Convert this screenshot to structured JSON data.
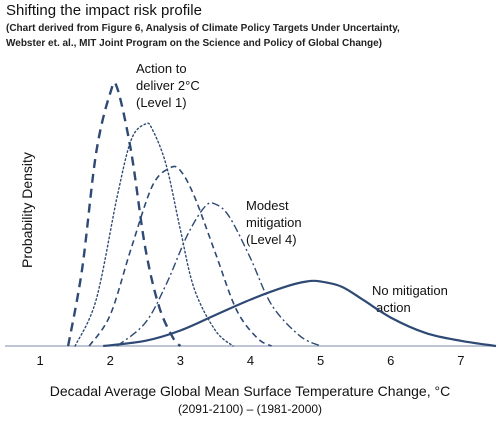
{
  "chart_data": {
    "type": "line",
    "title": "Shifting the impact risk profile",
    "subtitle_lines": [
      "(Chart derived from Figure 6, Analysis of Climate Policy Targets Under Uncertainty,",
      "Webster et. al., MIT Joint Program on the Science and Policy of Global Change)"
    ],
    "xlabel": "Decadal Average Global Mean Surface Temperature Change, °C",
    "xlabel_sub": "(2091-2100) – (1981-2000)",
    "ylabel": "Probability Density",
    "xlim": [
      0.5,
      7.5
    ],
    "ylim": [
      0,
      1
    ],
    "x_ticks": [
      1,
      2,
      3,
      4,
      5,
      6,
      7
    ],
    "grid": false,
    "legend": "none",
    "annotations": [
      {
        "lines": [
          "Action to",
          "deliver 2°C",
          "(Level 1)"
        ]
      },
      {
        "lines": [
          "Modest",
          "mitigation",
          "(Level 4)"
        ]
      },
      {
        "lines": [
          "No mitigation",
          "action"
        ]
      }
    ],
    "series": [
      {
        "style": "dashed-thick",
        "color": "#2e4a74",
        "x": [
          1.4,
          1.6,
          1.8,
          2.0,
          2.1,
          2.3,
          2.5,
          2.7,
          2.9,
          3.0
        ],
        "y": [
          0.0,
          0.3,
          0.75,
          0.98,
          1.0,
          0.75,
          0.38,
          0.15,
          0.03,
          0.0
        ]
      },
      {
        "style": "dotted",
        "color": "#2e4a74",
        "x": [
          1.5,
          1.8,
          2.1,
          2.3,
          2.5,
          2.6,
          2.8,
          3.0,
          3.2,
          3.5,
          3.75
        ],
        "y": [
          0.0,
          0.18,
          0.58,
          0.8,
          0.86,
          0.84,
          0.7,
          0.45,
          0.22,
          0.06,
          0.0
        ]
      },
      {
        "style": "dashed",
        "color": "#2e4a74",
        "x": [
          1.7,
          2.0,
          2.3,
          2.6,
          2.85,
          3.0,
          3.2,
          3.5,
          3.8,
          4.1,
          4.3
        ],
        "y": [
          0.0,
          0.12,
          0.38,
          0.62,
          0.69,
          0.68,
          0.58,
          0.36,
          0.14,
          0.03,
          0.0
        ]
      },
      {
        "style": "dashdot",
        "color": "#2e4a74",
        "x": [
          2.1,
          2.5,
          2.8,
          3.1,
          3.35,
          3.5,
          3.7,
          4.0,
          4.3,
          4.7,
          5.0
        ],
        "y": [
          0.0,
          0.09,
          0.24,
          0.43,
          0.54,
          0.55,
          0.5,
          0.34,
          0.16,
          0.04,
          0.0
        ]
      },
      {
        "style": "solid",
        "color": "#2e4a74",
        "x": [
          1.9,
          2.5,
          3.0,
          3.5,
          4.0,
          4.5,
          4.8,
          5.0,
          5.3,
          5.6,
          6.0,
          6.5,
          7.0,
          7.5
        ],
        "y": [
          0.0,
          0.02,
          0.06,
          0.12,
          0.18,
          0.23,
          0.25,
          0.25,
          0.23,
          0.18,
          0.11,
          0.05,
          0.02,
          0.0
        ]
      }
    ]
  }
}
